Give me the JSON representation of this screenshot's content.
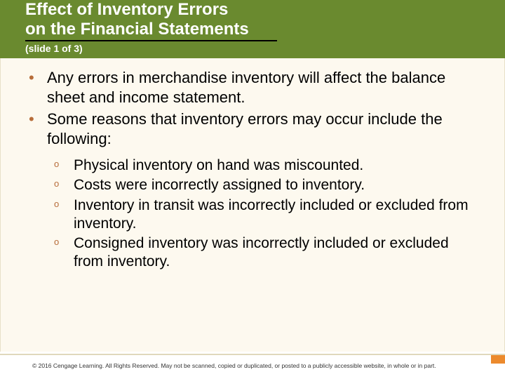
{
  "header": {
    "title_line1": "Effect of Inventory Errors",
    "title_line2": "on the Financial Statements",
    "slide_indicator": "(slide 1 of 3)",
    "background_color": "#6a8a2f",
    "text_color": "#ffffff",
    "underline_color": "#000000"
  },
  "content": {
    "background_color": "#fdf9ef",
    "bullet_color": "#b76d3a",
    "text_color": "#000000",
    "main_fontsize": 22,
    "sub_fontsize": 21,
    "main_bullets": [
      "Any errors in merchandise inventory will affect the balance sheet and income statement.",
      "Some reasons that inventory errors may occur include the following:"
    ],
    "sub_bullets": [
      "Physical inventory on hand was miscounted.",
      "Costs were incorrectly assigned to inventory.",
      "Inventory in transit was incorrectly included or excluded from inventory.",
      "Consigned inventory was incorrectly included or excluded from inventory."
    ]
  },
  "footer": {
    "accent_color": "#ec8a2d",
    "border_color": "#e0d8bc",
    "copyright": "© 2016 Cengage Learning. All Rights Reserved. May not be scanned, copied or duplicated, or posted to a publicly accessible website, in whole or in part."
  }
}
